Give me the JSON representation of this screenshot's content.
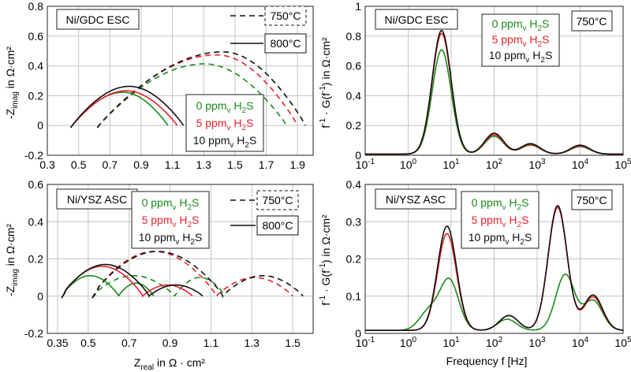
{
  "colors": {
    "green": "#1a8a1a",
    "red": "#e8202a",
    "black": "#111111",
    "grid": "#c4c4c4"
  },
  "labels": {
    "nyquist_ylabel": "-Z",
    "nyquist_ylabel_sub": "imag",
    "nyquist_ylabel_rest": " in Ω·cm²",
    "nyquist_xlabel": "Z",
    "nyquist_xlabel_sub": "real",
    "nyquist_xlabel_rest": " in Ω · cm²",
    "drt_ylabel_a": "f",
    "drt_ylabel_sup1": "-1",
    "drt_ylabel_b": " · G(f",
    "drt_ylabel_sup2": "-1",
    "drt_ylabel_c": ") in Ω·cm²",
    "drt_xlabel": "Frequency f [Hz]",
    "ppm_unit": " ppm",
    "ppm_sub": "v",
    "h2s": " H",
    "h2s_sub": "2",
    "h2s_end": "S"
  },
  "chart_data": [
    {
      "id": "nyq_gdc",
      "type": "line",
      "panel_label": "Ni/GDC ESC",
      "xlim": [
        0.3,
        2.0
      ],
      "ylim": [
        -0.2,
        0.8
      ],
      "xticks": [
        0.3,
        0.5,
        0.7,
        0.9,
        1.1,
        1.3,
        1.5,
        1.7,
        1.9
      ],
      "yticks": [
        -0.2,
        0,
        0.2,
        0.4,
        0.6,
        0.8
      ],
      "temp_legend": [
        {
          "label": "750°C",
          "style": "dashed"
        },
        {
          "label": "800°C",
          "style": "solid"
        }
      ],
      "conc_legend": [
        {
          "value": "0",
          "color": "green"
        },
        {
          "value": "5",
          "color": "red"
        },
        {
          "value": "10",
          "color": "black"
        }
      ],
      "series": [
        {
          "color": "green",
          "dash": true,
          "start": 0.62,
          "end": 1.83,
          "peak": 0.42,
          "peak_x": 1.3
        },
        {
          "color": "red",
          "dash": true,
          "start": 0.62,
          "end": 1.9,
          "peak": 0.48,
          "peak_x": 1.38
        },
        {
          "color": "black",
          "dash": true,
          "start": 0.62,
          "end": 1.95,
          "peak": 0.5,
          "peak_x": 1.42
        },
        {
          "color": "green",
          "dash": false,
          "start": 0.45,
          "end": 1.07,
          "peak": 0.23,
          "peak_x": 0.78
        },
        {
          "color": "red",
          "dash": false,
          "start": 0.45,
          "end": 1.13,
          "peak": 0.24,
          "peak_x": 0.8
        },
        {
          "color": "black",
          "dash": false,
          "start": 0.45,
          "end": 1.17,
          "peak": 0.27,
          "peak_x": 0.82
        }
      ]
    },
    {
      "id": "drt_gdc",
      "type": "line",
      "panel_label": "Ni/GDC ESC",
      "temp_label": "750°C",
      "xlog": true,
      "xlim": [
        0.1,
        100000
      ],
      "ylim": [
        0,
        1.0
      ],
      "xtick_base": "10",
      "xtick_exps": [
        "-1",
        "0",
        "1",
        "2",
        "3",
        "4",
        "5"
      ],
      "yticks": [
        0,
        0.2,
        0.4,
        0.6,
        0.8,
        1.0
      ],
      "conc_legend": [
        {
          "value": "0",
          "color": "green"
        },
        {
          "value": "5",
          "color": "red"
        },
        {
          "value": "10",
          "color": "black"
        }
      ],
      "series": [
        {
          "color": "green",
          "peaks": [
            [
              6,
              0.7
            ],
            [
              100,
              0.12
            ],
            [
              700,
              0.06
            ],
            [
              10000,
              0.05
            ]
          ]
        },
        {
          "color": "red",
          "peaks": [
            [
              6,
              0.81
            ],
            [
              100,
              0.13
            ],
            [
              700,
              0.065
            ],
            [
              10000,
              0.055
            ]
          ]
        },
        {
          "color": "black",
          "peaks": [
            [
              6,
              0.83
            ],
            [
              100,
              0.14
            ],
            [
              700,
              0.07
            ],
            [
              10000,
              0.06
            ]
          ]
        }
      ]
    },
    {
      "id": "nyq_ysz",
      "type": "line",
      "panel_label": "Ni/YSZ ASC",
      "xlim": [
        0.3,
        1.6
      ],
      "ylim": [
        -0.2,
        0.6
      ],
      "xticks": [
        0.35,
        0.5,
        0.7,
        0.9,
        1.1,
        1.3,
        1.5
      ],
      "xtick_labels": [
        "0.35",
        "0.5",
        "0.7",
        "0.9",
        "1.1",
        "1.3",
        "1.5"
      ],
      "yticks": [
        -0.2,
        0,
        0.2,
        0.4,
        0.6
      ],
      "temp_legend": [
        {
          "label": "750°C",
          "style": "dashed"
        },
        {
          "label": "800°C",
          "style": "solid"
        }
      ],
      "conc_legend": [
        {
          "value": "0",
          "color": "green"
        },
        {
          "value": "5",
          "color": "red"
        },
        {
          "value": "10",
          "color": "black"
        }
      ],
      "series": [
        {
          "color": "green",
          "dash": true,
          "start": 0.52,
          "end": 1.17,
          "arcs": [
            0.11,
            0.1
          ]
        },
        {
          "color": "red",
          "dash": true,
          "start": 0.52,
          "end": 1.5,
          "arcs": [
            0.24,
            0.1
          ]
        },
        {
          "color": "black",
          "dash": true,
          "start": 0.52,
          "end": 1.55,
          "arcs": [
            0.24,
            0.11
          ]
        },
        {
          "color": "green",
          "dash": false,
          "start": 0.37,
          "end": 0.82,
          "arcs": [
            0.11,
            0.07
          ]
        },
        {
          "color": "red",
          "dash": false,
          "start": 0.37,
          "end": 1.01,
          "arcs": [
            0.16,
            0.06
          ]
        },
        {
          "color": "black",
          "dash": false,
          "start": 0.37,
          "end": 1.06,
          "arcs": [
            0.17,
            0.06
          ]
        }
      ]
    },
    {
      "id": "drt_ysz",
      "type": "line",
      "panel_label": "Ni/YSZ ASC",
      "temp_label": "750°C",
      "xlog": true,
      "xlim": [
        0.1,
        100000
      ],
      "ylim": [
        0,
        0.4
      ],
      "xtick_base": "10",
      "xtick_exps": [
        "-1",
        "0",
        "1",
        "2",
        "3",
        "4",
        "5"
      ],
      "yticks": [
        0,
        0.1,
        0.2,
        0.3,
        0.4
      ],
      "conc_legend": [
        {
          "value": "0",
          "color": "green"
        },
        {
          "value": "5",
          "color": "red"
        },
        {
          "value": "10",
          "color": "black"
        }
      ],
      "series": [
        {
          "color": "green",
          "peaks": [
            [
              3,
              0.05
            ],
            [
              9,
              0.135
            ],
            [
              200,
              0.03
            ],
            [
              4500,
              0.15
            ],
            [
              20000,
              0.08
            ]
          ]
        },
        {
          "color": "red",
          "peaks": [
            [
              8,
              0.26
            ],
            [
              220,
              0.04
            ],
            [
              3000,
              0.33
            ],
            [
              20000,
              0.09
            ]
          ]
        },
        {
          "color": "black",
          "peaks": [
            [
              8,
              0.28
            ],
            [
              220,
              0.04
            ],
            [
              3000,
              0.335
            ],
            [
              20000,
              0.095
            ]
          ]
        }
      ]
    }
  ]
}
